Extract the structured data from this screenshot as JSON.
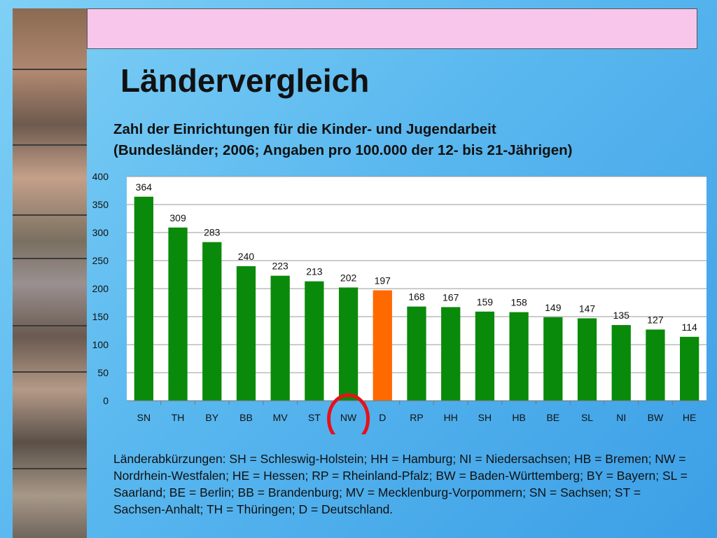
{
  "slide": {
    "title": "Ländervergleich",
    "subtitle_line1": "Zahl der Einrichtungen für die Kinder- und Jugendarbeit",
    "subtitle_line2": "(Bundesländer; 2006; Angaben pro 100.000 der 12- bis 21-Jährigen)",
    "footnote": "Länderabkürzungen: SH = Schleswig-Holstein; HH = Hamburg; NI = Niedersachsen; HB = Bremen; NW = Nordrhein-Westfalen; HE = Hessen; RP = Rheinland-Pfalz; BW = Baden-Württemberg; BY = Bayern; SL = Saarland; BE = Berlin; BB = Brandenburg; MV = Mecklenburg-Vorpommern; SN = Sachsen; ST = Sachsen-Anhalt; TH = Thüringen; D = Deutschland."
  },
  "colors": {
    "bar": "#0a8a0a",
    "highlight_bar": "#ff6a00",
    "header_bar": "#f8c6ea",
    "circle": "#e8101a"
  },
  "chart_data": {
    "type": "bar",
    "categories": [
      "SN",
      "TH",
      "BY",
      "BB",
      "MV",
      "ST",
      "NW",
      "D",
      "RP",
      "HH",
      "SH",
      "HB",
      "BE",
      "SL",
      "NI",
      "BW",
      "HE"
    ],
    "values": [
      364,
      309,
      283,
      240,
      223,
      213,
      202,
      197,
      168,
      167,
      159,
      158,
      149,
      147,
      135,
      127,
      114
    ],
    "highlighted_category": "D",
    "circled_category": "NW",
    "ylim": [
      0,
      400
    ],
    "yticks": [
      0,
      50,
      100,
      150,
      200,
      250,
      300,
      350,
      400
    ],
    "grid": true,
    "data_labels": true,
    "title": "",
    "xlabel": "",
    "ylabel": ""
  }
}
